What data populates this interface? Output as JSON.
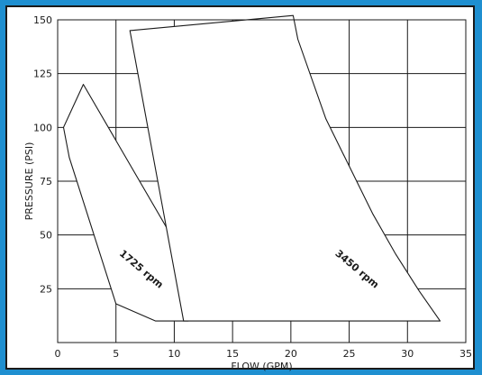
{
  "chart_data": {
    "type": "area",
    "title": "",
    "xlabel": "FLOW (GPM)",
    "ylabel": "PRESSURE (PSI)",
    "xlim": [
      0,
      35
    ],
    "ylim": [
      0,
      150
    ],
    "x_ticks": [
      0,
      5,
      10,
      15,
      20,
      25,
      30,
      35
    ],
    "y_ticks": [
      25,
      50,
      75,
      100,
      125,
      150
    ],
    "grid": true,
    "series": [
      {
        "name": "1725 rpm",
        "points": [
          [
            0.5,
            100
          ],
          [
            2.2,
            120
          ],
          [
            9.6,
            51
          ],
          [
            11.2,
            10
          ],
          [
            8.4,
            10
          ],
          [
            5.0,
            18
          ],
          [
            1.0,
            86
          ],
          [
            0.5,
            100
          ]
        ]
      },
      {
        "name": "3450 rpm",
        "points": [
          [
            6.2,
            145
          ],
          [
            20.2,
            152
          ],
          [
            20.6,
            141
          ],
          [
            23.0,
            104
          ],
          [
            25.0,
            82
          ],
          [
            27.0,
            60
          ],
          [
            29.0,
            41
          ],
          [
            31.0,
            24
          ],
          [
            32.8,
            10
          ],
          [
            10.8,
            10
          ],
          [
            6.2,
            145
          ]
        ]
      }
    ]
  }
}
